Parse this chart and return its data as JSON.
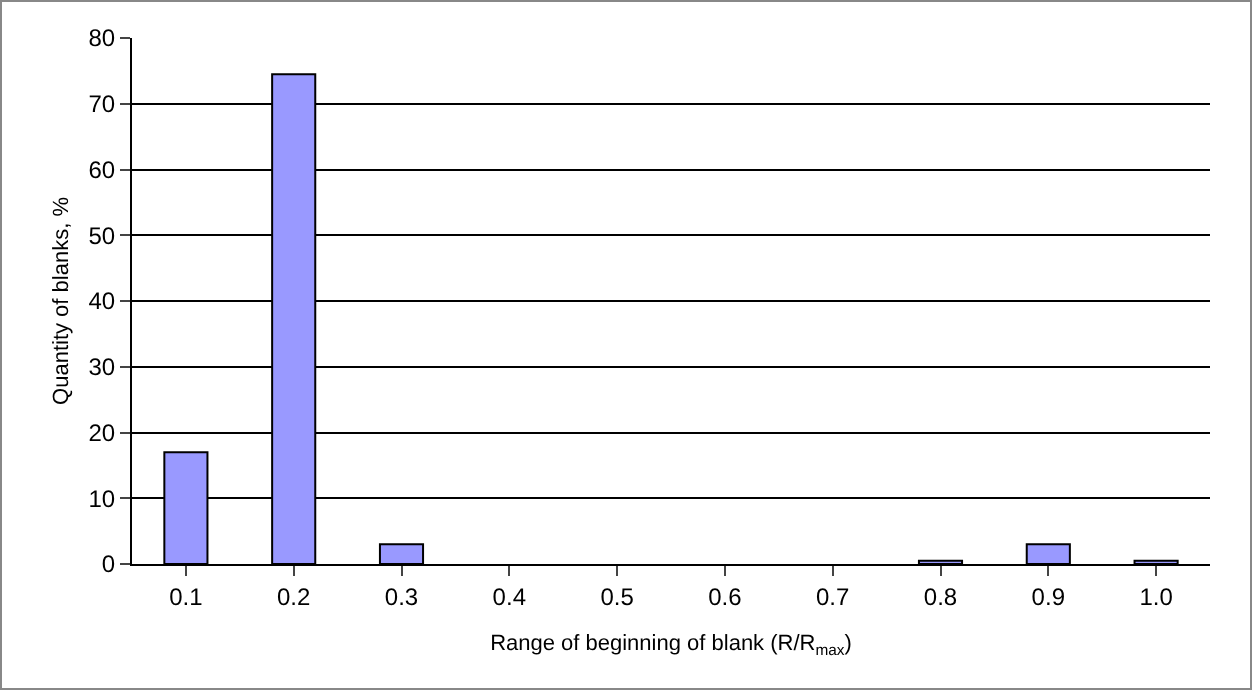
{
  "chart_data": {
    "type": "bar",
    "xlabel": "Range of beginning of blank (R/R$_{max}$)",
    "ylabel": "Quantity of blanks, %",
    "categories": [
      "0.1",
      "0.2",
      "0.3",
      "0.4",
      "0.5",
      "0.6",
      "0.7",
      "0.8",
      "0.9",
      "1.0"
    ],
    "values": [
      17,
      74.5,
      3,
      0,
      0,
      0,
      0,
      0.5,
      3,
      0.5
    ],
    "color": "#9999ff",
    "ylim": [
      0,
      80
    ],
    "yticks": [
      0,
      10,
      20,
      30,
      40,
      50,
      60,
      70,
      80
    ],
    "grid": "y"
  }
}
